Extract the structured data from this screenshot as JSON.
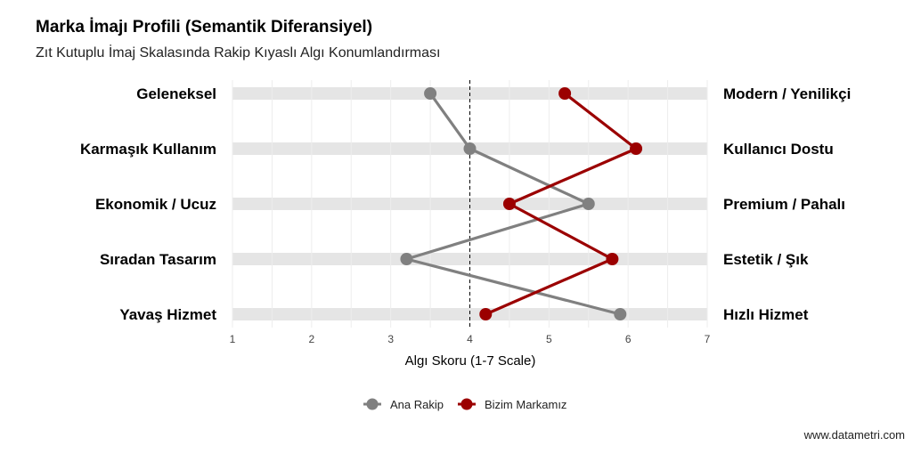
{
  "chart_data": {
    "type": "line",
    "title": "Marka İmajı Profili (Semantik Diferansiyel)",
    "subtitle": "Zıt Kutuplu İmaj Skalasında Rakip Kıyaslı Algı Konumlandırması",
    "xlabel": "Algı Skoru (1-7 Scale)",
    "xlim": [
      1,
      7
    ],
    "xticks": [
      1,
      2,
      3,
      4,
      5,
      6,
      7
    ],
    "reference_line": 4,
    "left_labels": [
      "Geleneksel",
      "Karmaşık Kullanım",
      "Ekonomik / Ucuz",
      "Sıradan Tasarım",
      "Yavaş Hizmet"
    ],
    "right_labels": [
      "Modern / Yenilikçi",
      "Kullanıcı Dostu",
      "Premium / Pahalı",
      "Estetik / Şık",
      "Hızlı Hizmet"
    ],
    "series": [
      {
        "name": "Ana Rakip",
        "color": "#808080",
        "values": [
          3.5,
          4.0,
          5.5,
          3.2,
          5.9
        ]
      },
      {
        "name": "Bizim Markamız",
        "color": "#9b0000",
        "values": [
          5.2,
          6.1,
          4.5,
          5.8,
          4.2
        ]
      }
    ],
    "legend_position": "bottom",
    "grid": true
  },
  "caption": "www.datametri.com"
}
